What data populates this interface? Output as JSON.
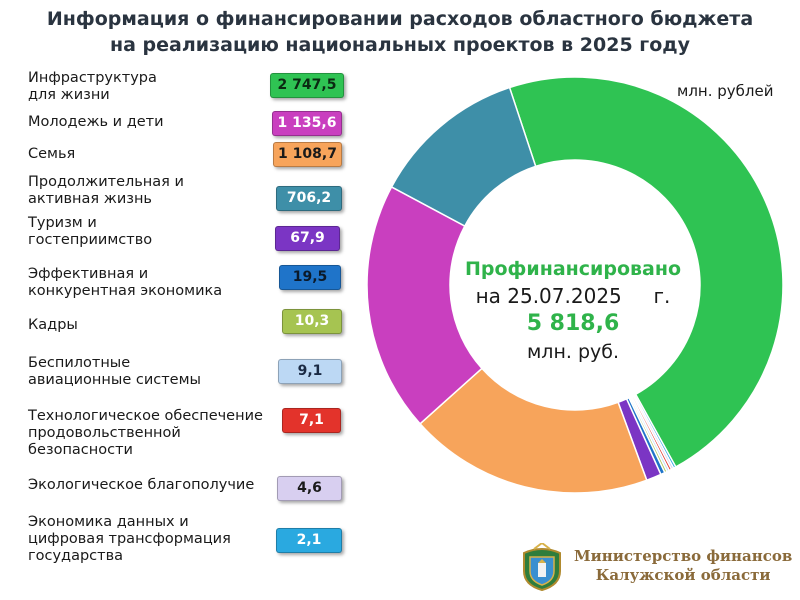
{
  "title": {
    "line1": "Информация о финансировании расходов областного бюджета",
    "line2": "на реализацию национальных проектов в 2025 году"
  },
  "unit_label": "млн. рублей",
  "center": {
    "line1": "Профинансировано",
    "line2": "на 25.07.2025     г.",
    "total": "5 818,6",
    "line4": "млн. руб."
  },
  "ministry": {
    "line1": "Министерство финансов",
    "line2": "Калужской области"
  },
  "colors": {
    "title": "#2a3440",
    "center_green": "#2fb34a",
    "ministry_text": "#8a6a3a"
  },
  "chart_data": {
    "type": "pie",
    "variant": "donut",
    "total": 5818.6,
    "unit": "млн. рублей",
    "series": [
      {
        "name": "Инфраструктура для жизни",
        "label": "2 747,5",
        "value": 2747.5,
        "color": "#2fc353",
        "text_color": "#0b2a12"
      },
      {
        "name": "Молодежь и дети",
        "label": "1 135,6",
        "value": 1135.6,
        "color": "#c93fbf",
        "text_color": "#ffffff"
      },
      {
        "name": "Семья",
        "label": "1 108,7",
        "value": 1108.7,
        "color": "#f7a45b",
        "text_color": "#1a1a1a"
      },
      {
        "name": "Продолжительная и активная жизнь",
        "label": "706,2",
        "value": 706.2,
        "color": "#3e8fa8",
        "text_color": "#ffffff"
      },
      {
        "name": "Туризм и гостеприимство",
        "label": "67,9",
        "value": 67.9,
        "color": "#7b35c4",
        "text_color": "#ffffff"
      },
      {
        "name": "Эффективная и конкурентная экономика",
        "label": "19,5",
        "value": 19.5,
        "color": "#1f74c9",
        "text_color": "#0b1a2a"
      },
      {
        "name": "Кадры",
        "label": "10,3",
        "value": 10.3,
        "color": "#a6c451",
        "text_color": "#ffffff"
      },
      {
        "name": "Беспилотные авиационные системы",
        "label": "9,1",
        "value": 9.1,
        "color": "#bcd8f4",
        "text_color": "#1a2a44"
      },
      {
        "name": "Технологическое обеспечение продовольственной безопасности",
        "label": "7,1",
        "value": 7.1,
        "color": "#e3332b",
        "text_color": "#ffffff"
      },
      {
        "name": "Экологическое благополучие",
        "label": "4,6",
        "value": 4.6,
        "color": "#d8cff0",
        "text_color": "#1a1a1a"
      },
      {
        "name": "Экономика данных и цифровая трансформация государства",
        "label": "2,1",
        "value": 2.1,
        "color": "#2aa9e0",
        "text_color": "#ffffff"
      }
    ]
  }
}
